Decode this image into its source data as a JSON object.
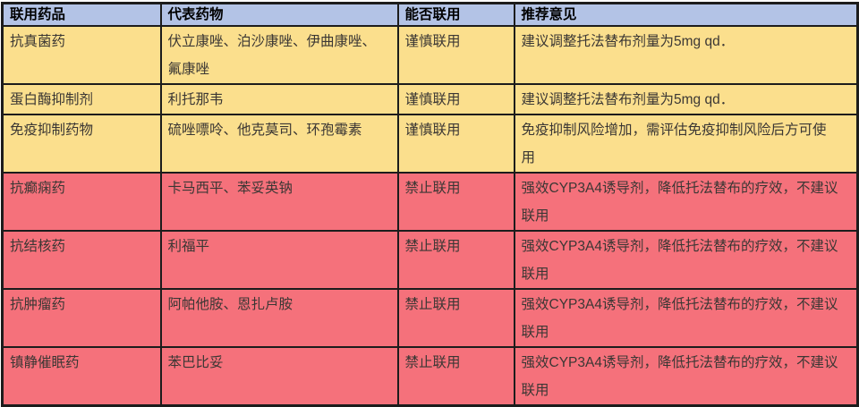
{
  "colors": {
    "header_bg": "#b3c3e6",
    "caution_bg": "#fbdf8d",
    "forbidden_bg": "#f5717b",
    "border": "#1c1c1c",
    "text": "#3b3734"
  },
  "table": {
    "columns": [
      "联用药品",
      "代表药物",
      "能否联用",
      "推荐意见"
    ],
    "rows": [
      {
        "drug_class": "抗真菌药",
        "representatives": "伏立康唑、泊沙康唑、伊曲康唑、\n氟康唑",
        "compatibility": "谨慎联用",
        "recommendation": "建议调整托法替布剂量为5mg qd．",
        "severity": "caution"
      },
      {
        "drug_class": "蛋白酶抑制剂",
        "representatives": "利托那韦",
        "compatibility": "谨慎联用",
        "recommendation": "建议调整托法替布剂量为5mg qd．",
        "severity": "caution"
      },
      {
        "drug_class": "免疫抑制药物",
        "representatives": "硫唑嘌呤、他克莫司、环孢霉素",
        "compatibility": "谨慎联用",
        "recommendation": "免疫抑制风险增加，需评估免疫抑制风险后方可使\n用",
        "severity": "caution"
      },
      {
        "drug_class": "抗癫痫药",
        "representatives": "卡马西平、苯妥英钠",
        "compatibility": "禁止联用",
        "recommendation": "强效CYP3A4诱导剂，降低托法替布的疗效，不建议\n联用",
        "severity": "forbidden"
      },
      {
        "drug_class": "抗结核药",
        "representatives": "利福平",
        "compatibility": "禁止联用",
        "recommendation": "强效CYP3A4诱导剂，降低托法替布的疗效，不建议\n联用",
        "severity": "forbidden"
      },
      {
        "drug_class": "抗肿瘤药",
        "representatives": "阿帕他胺、恩扎卢胺",
        "compatibility": "禁止联用",
        "recommendation": "强效CYP3A4诱导剂，降低托法替布的疗效，不建议\n联用",
        "severity": "forbidden"
      },
      {
        "drug_class": "镇静催眠药",
        "representatives": "苯巴比妥",
        "compatibility": "禁止联用",
        "recommendation": "强效CYP3A4诱导剂，降低托法替布的疗效，不建议\n联用",
        "severity": "forbidden"
      }
    ]
  }
}
